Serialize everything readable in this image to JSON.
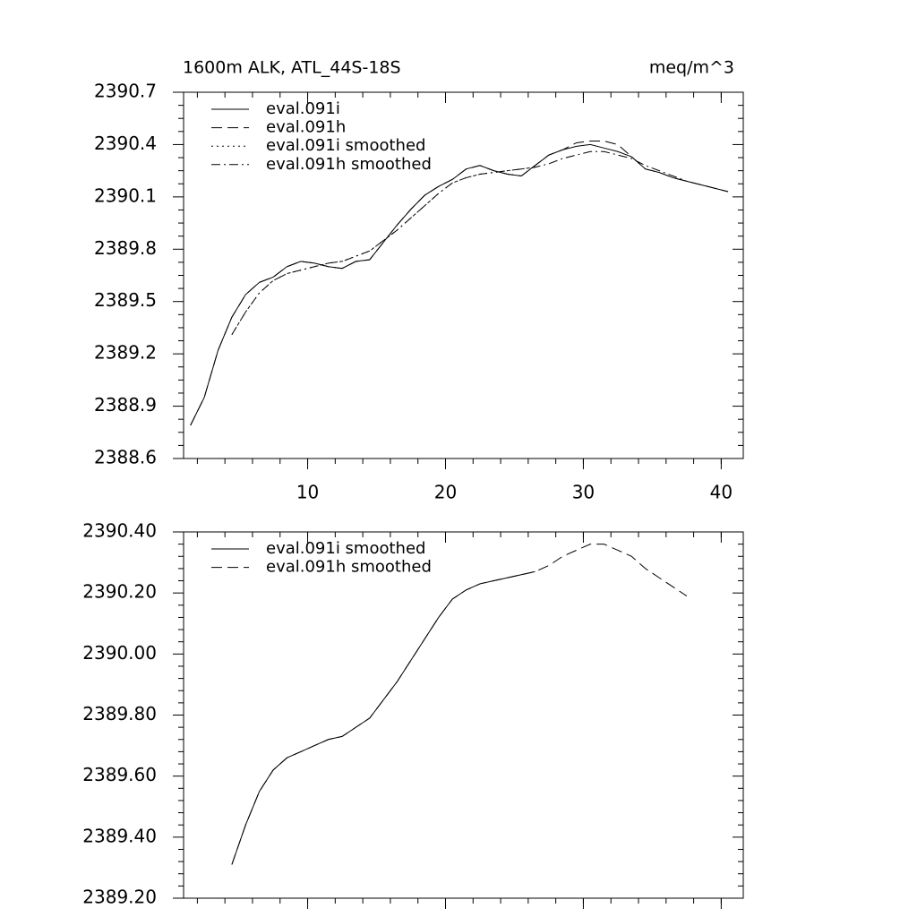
{
  "chart_data": [
    {
      "type": "line",
      "title": "1600m ALK, ATL_44S-18S",
      "units": "meq/m^3",
      "xlim": [
        1,
        41.6
      ],
      "ylim": [
        2388.6,
        2390.7
      ],
      "xticks": [
        10,
        20,
        30,
        40
      ],
      "yticks": [
        2390.7,
        2390.4,
        2390.1,
        2389.8,
        2389.5,
        2389.2,
        2388.9,
        2388.6
      ],
      "show_xtick_labels": true,
      "legend": "upper left",
      "x": [
        1.5,
        2.5,
        3.5,
        4.5,
        5.5,
        6.5,
        7.5,
        8.5,
        9.5,
        10.5,
        11.5,
        12.5,
        13.5,
        14.5,
        15.5,
        16.5,
        17.5,
        18.5,
        19.5,
        20.5,
        21.5,
        22.5,
        23.5,
        24.5,
        25.5,
        26.5,
        27.5,
        28.5,
        29.5,
        30.5,
        31.5,
        32.5,
        33.5,
        34.5,
        35.5,
        36.5,
        37.5,
        38.5,
        39.5,
        40.5
      ],
      "series": [
        {
          "name": "eval.091i",
          "color": "#000000",
          "dash": "solid",
          "values": [
            2388.79,
            2388.95,
            2389.22,
            2389.41,
            2389.54,
            2389.61,
            2389.64,
            2389.7,
            2389.73,
            2389.72,
            2389.7,
            2389.69,
            2389.73,
            2389.74,
            2389.84,
            2389.94,
            2390.03,
            2390.11,
            2390.16,
            2390.2,
            2390.26,
            2390.28,
            2390.25,
            2390.23,
            2390.22,
            2390.28,
            2390.34,
            2390.37,
            2390.39,
            2390.4,
            2390.38,
            2390.36,
            2390.33,
            2390.26,
            2390.24,
            2390.21,
            2390.19,
            2390.17,
            2390.15,
            2390.13
          ]
        },
        {
          "name": "eval.091h",
          "color": "#000000",
          "dash": "dashed",
          "values": [
            2388.79,
            2388.95,
            2389.22,
            2389.41,
            2389.54,
            2389.61,
            2389.64,
            2389.7,
            2389.73,
            2389.72,
            2389.7,
            2389.69,
            2389.73,
            2389.74,
            2389.84,
            2389.94,
            2390.03,
            2390.11,
            2390.16,
            2390.2,
            2390.26,
            2390.28,
            2390.25,
            2390.23,
            2390.22,
            2390.28,
            2390.34,
            2390.37,
            2390.41,
            2390.42,
            2390.42,
            2390.4,
            2390.33,
            2390.26,
            2390.24,
            2390.21,
            2390.19,
            2390.17,
            2390.15,
            2390.13
          ]
        },
        {
          "name": "eval.091i smoothed",
          "color": "#000000",
          "dash": "dotted",
          "values": [
            null,
            null,
            null,
            2389.31,
            2389.44,
            2389.55,
            2389.62,
            2389.66,
            2389.68,
            2389.7,
            2389.72,
            2389.73,
            2389.76,
            2389.79,
            2389.85,
            2389.91,
            2389.98,
            2390.05,
            2390.12,
            2390.18,
            2390.21,
            2390.23,
            2390.24,
            2390.25,
            2390.26,
            2390.27,
            null,
            null,
            null,
            null,
            null,
            null,
            null,
            null,
            null,
            null,
            null,
            null,
            null,
            null
          ]
        },
        {
          "name": "eval.091h smoothed",
          "color": "#000000",
          "dash": "dashdot",
          "values": [
            null,
            null,
            null,
            2389.31,
            2389.44,
            2389.55,
            2389.62,
            2389.66,
            2389.68,
            2389.7,
            2389.72,
            2389.73,
            2389.76,
            2389.79,
            2389.85,
            2389.91,
            2389.98,
            2390.05,
            2390.12,
            2390.18,
            2390.21,
            2390.23,
            2390.24,
            2390.25,
            2390.26,
            2390.27,
            2390.29,
            2390.32,
            2390.34,
            2390.36,
            2390.36,
            2390.34,
            2390.32,
            2390.28,
            2390.25,
            2390.22,
            2390.19,
            null,
            null,
            null
          ]
        }
      ]
    },
    {
      "type": "line",
      "xlim": [
        1,
        41.6
      ],
      "ylim": [
        2389.2,
        2390.4
      ],
      "xticks": [
        10,
        20,
        30,
        40
      ],
      "yticks": [
        {
          "value": 2390.4,
          "label": "2390.40"
        },
        {
          "value": 2390.2,
          "label": "2390.20"
        },
        {
          "value": 2390.0,
          "label": "2390.00"
        },
        {
          "value": 2389.8,
          "label": "2389.80"
        },
        {
          "value": 2389.6,
          "label": "2389.60"
        },
        {
          "value": 2389.4,
          "label": "2389.40"
        },
        {
          "value": 2389.2,
          "label": "2389.20"
        }
      ],
      "show_xtick_labels": false,
      "legend": "upper left",
      "x": [
        4.5,
        5.5,
        6.5,
        7.5,
        8.5,
        9.5,
        10.5,
        11.5,
        12.5,
        13.5,
        14.5,
        15.5,
        16.5,
        17.5,
        18.5,
        19.5,
        20.5,
        21.5,
        22.5,
        23.5,
        24.5,
        25.5,
        26.5,
        27.5,
        28.5,
        29.5,
        30.5,
        31.5,
        32.5,
        33.5,
        34.5,
        35.5,
        36.5,
        37.5
      ],
      "series": [
        {
          "name": "eval.091i smoothed",
          "color": "#000000",
          "dash": "solid",
          "values": [
            2389.31,
            2389.44,
            2389.55,
            2389.62,
            2389.66,
            2389.68,
            2389.7,
            2389.72,
            2389.73,
            2389.76,
            2389.79,
            2389.85,
            2389.91,
            2389.98,
            2390.05,
            2390.12,
            2390.18,
            2390.21,
            2390.23,
            2390.24,
            2390.25,
            2390.26,
            2390.27,
            null,
            null,
            null,
            null,
            null,
            null,
            null,
            null,
            null,
            null,
            null
          ]
        },
        {
          "name": "eval.091h smoothed",
          "color": "#000000",
          "dash": "dashed",
          "values": [
            2389.31,
            2389.44,
            2389.55,
            2389.62,
            2389.66,
            2389.68,
            2389.7,
            2389.72,
            2389.73,
            2389.76,
            2389.79,
            2389.85,
            2389.91,
            2389.98,
            2390.05,
            2390.12,
            2390.18,
            2390.21,
            2390.23,
            2390.24,
            2390.25,
            2390.26,
            2390.27,
            2390.29,
            2390.32,
            2390.34,
            2390.36,
            2390.36,
            2390.34,
            2390.32,
            2390.28,
            2390.25,
            2390.22,
            2390.19
          ]
        }
      ]
    }
  ]
}
